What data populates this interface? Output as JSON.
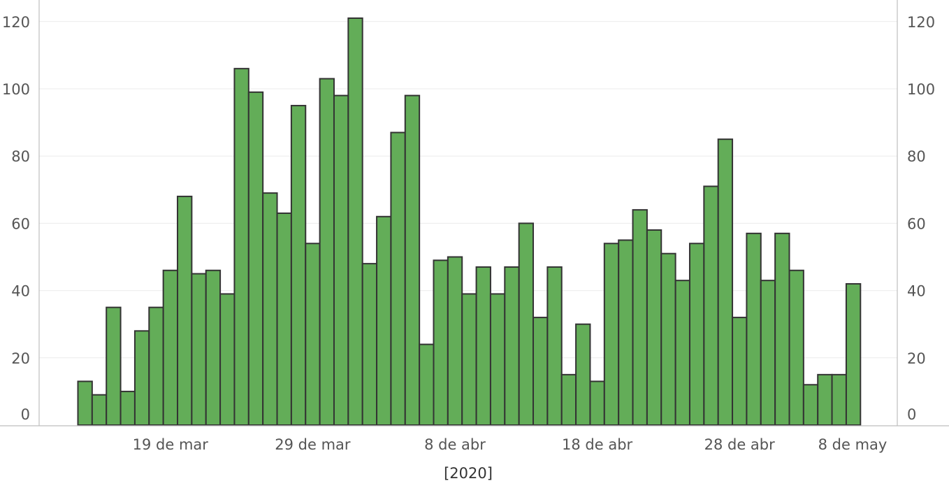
{
  "chart_data": {
    "type": "bar",
    "title": "",
    "xlabel": "[2020]",
    "ylabel": "",
    "ylim": [
      0,
      125
    ],
    "yticks": [
      0,
      20,
      40,
      60,
      80,
      100,
      120
    ],
    "ytick_labels": [
      "0",
      "20",
      "40",
      "60",
      "80",
      "100",
      "120"
    ],
    "grid": true,
    "bar_color": "#63ad58",
    "bar_edge_color": "#333333",
    "categories": [
      "2020-03-13",
      "2020-03-14",
      "2020-03-15",
      "2020-03-16",
      "2020-03-17",
      "2020-03-18",
      "2020-03-19",
      "2020-03-20",
      "2020-03-21",
      "2020-03-22",
      "2020-03-23",
      "2020-03-24",
      "2020-03-25",
      "2020-03-26",
      "2020-03-27",
      "2020-03-28",
      "2020-03-29",
      "2020-03-30",
      "2020-03-31",
      "2020-04-01",
      "2020-04-02",
      "2020-04-03",
      "2020-04-04",
      "2020-04-05",
      "2020-04-06",
      "2020-04-07",
      "2020-04-08",
      "2020-04-09",
      "2020-04-10",
      "2020-04-11",
      "2020-04-12",
      "2020-04-13",
      "2020-04-14",
      "2020-04-15",
      "2020-04-16",
      "2020-04-17",
      "2020-04-18",
      "2020-04-19",
      "2020-04-20",
      "2020-04-21",
      "2020-04-22",
      "2020-04-23",
      "2020-04-24",
      "2020-04-25",
      "2020-04-26",
      "2020-04-27",
      "2020-04-28",
      "2020-04-29",
      "2020-04-30",
      "2020-05-01",
      "2020-05-02",
      "2020-05-03",
      "2020-05-04",
      "2020-05-05",
      "2020-05-06"
    ],
    "values": [
      13,
      9,
      35,
      10,
      28,
      35,
      46,
      68,
      45,
      46,
      39,
      106,
      99,
      69,
      63,
      95,
      54,
      103,
      98,
      121,
      48,
      62,
      87,
      98,
      24,
      49,
      50,
      39,
      47,
      39,
      47,
      60,
      32,
      47,
      15,
      30,
      13,
      54,
      55,
      64,
      58,
      51,
      43,
      54,
      71,
      85,
      32,
      57,
      43,
      57,
      46,
      12,
      15,
      15,
      42
    ],
    "xticks": [
      {
        "category": "2020-03-19",
        "label": "19 de mar"
      },
      {
        "category": "2020-03-29",
        "label": "29 de mar"
      },
      {
        "category": "2020-04-08",
        "label": "8 de abr"
      },
      {
        "category": "2020-04-18",
        "label": "18 de abr"
      },
      {
        "category": "2020-04-28",
        "label": "28 de abr"
      },
      {
        "category": "2020-05-08",
        "label": "8 de may"
      }
    ]
  }
}
